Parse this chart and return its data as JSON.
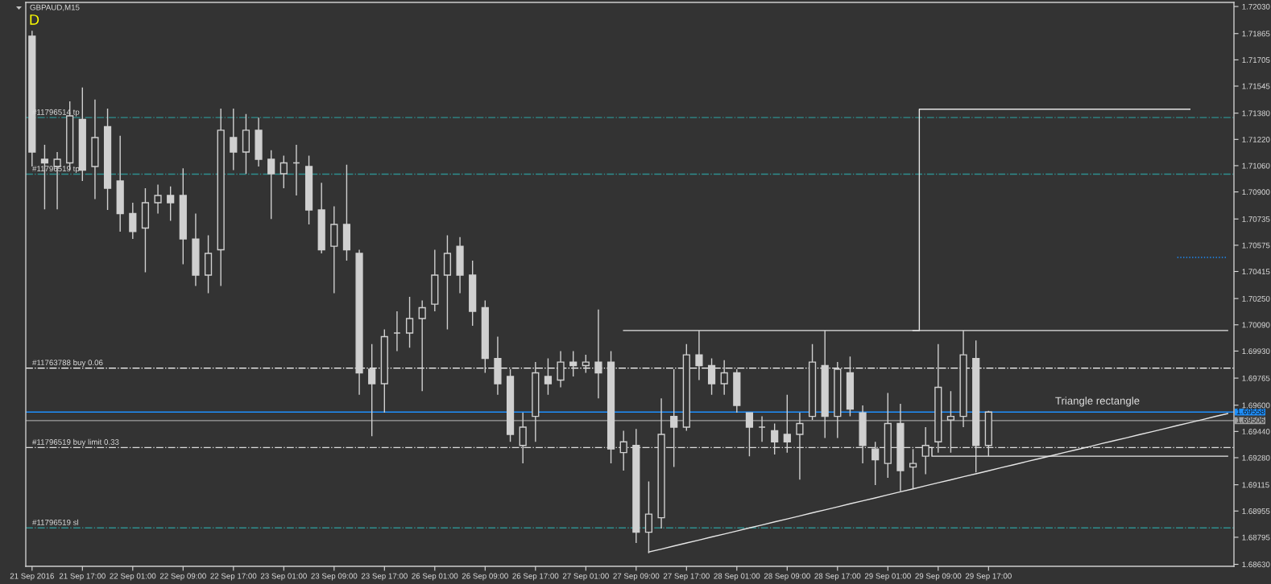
{
  "chart_data": {
    "type": "candlestick",
    "title": "GBPAUD,M15",
    "annotations": [
      "D",
      "Triangle rectangle"
    ],
    "color": "#d0d0d0",
    "categories": [
      "21 Sep 2016",
      null,
      null,
      null,
      "21 Sep 17:00",
      null,
      null,
      null,
      "22 Sep 01:00",
      null,
      null,
      null,
      "22 Sep 09:00",
      null,
      null,
      null,
      "22 Sep 17:00",
      null,
      null,
      null,
      "23 Sep 01:00",
      null,
      null,
      null,
      "23 Sep 09:00",
      null,
      null,
      null,
      "23 Sep 17:00",
      null,
      null,
      null,
      "26 Sep 01:00",
      null,
      null,
      null,
      "26 Sep 09:00",
      null,
      null,
      null,
      "26 Sep 17:00",
      null,
      null,
      null,
      "27 Sep 01:00",
      null,
      null,
      null,
      "27 Sep 09:00",
      null,
      null,
      null,
      "27 Sep 17:00",
      null,
      null,
      null,
      "28 Sep 01:00",
      null,
      null,
      null,
      "28 Sep 09:00",
      null,
      null,
      null,
      "28 Sep 17:00",
      null,
      null,
      null,
      "29 Sep 01:00",
      null,
      null,
      null,
      "29 Sep 09:00",
      null,
      null,
      null,
      "29 Sep 17:00",
      null,
      null,
      null,
      null,
      null,
      null,
      null,
      null,
      null,
      null,
      null,
      null,
      null,
      null,
      null,
      null,
      null,
      null,
      null
    ],
    "ohlc": [
      [
        1.71849,
        1.71882,
        1.71055,
        1.71143
      ],
      [
        1.71099,
        1.71187,
        1.70794,
        1.71077
      ],
      [
        1.71055,
        1.71143,
        1.70794,
        1.71099
      ],
      [
        1.71077,
        1.71452,
        1.71033,
        1.71364
      ],
      [
        1.71342,
        1.71536,
        1.70967,
        1.71033
      ],
      [
        1.71055,
        1.71463,
        1.70856,
        1.71231
      ],
      [
        1.71298,
        1.71408,
        1.7079,
        1.70922
      ],
      [
        1.70967,
        1.71242,
        1.70658,
        1.70768
      ],
      [
        1.70768,
        1.70834,
        1.70613,
        1.70658
      ],
      [
        1.7068,
        1.70922,
        1.7041,
        1.70834
      ],
      [
        1.70834,
        1.70944,
        1.70768,
        1.70878
      ],
      [
        1.70878,
        1.70933,
        1.70724,
        1.70834
      ],
      [
        1.70878,
        1.71044,
        1.70459,
        1.70613
      ],
      [
        1.70613,
        1.70768,
        1.70327,
        1.70393
      ],
      [
        1.70393,
        1.70635,
        1.70282,
        1.70525
      ],
      [
        1.70547,
        1.71408,
        1.70327,
        1.71276
      ],
      [
        1.71231,
        1.71408,
        1.71033,
        1.71143
      ],
      [
        1.71143,
        1.71375,
        1.71011,
        1.71276
      ],
      [
        1.71276,
        1.71353,
        1.71055,
        1.71099
      ],
      [
        1.71099,
        1.71154,
        1.70735,
        1.71011
      ],
      [
        1.71011,
        1.71121,
        1.70922,
        1.71077
      ],
      [
        1.71077,
        1.71187,
        1.70878,
        1.71077
      ],
      [
        1.71055,
        1.71121,
        1.70702,
        1.7079
      ],
      [
        1.7079,
        1.70956,
        1.70525,
        1.70547
      ],
      [
        1.70569,
        1.70812,
        1.70282,
        1.70702
      ],
      [
        1.70702,
        1.71066,
        1.70481,
        1.70547
      ],
      [
        1.70525,
        1.70547,
        1.69664,
        1.69797
      ],
      [
        1.69819,
        1.69973,
        1.69411,
        1.69731
      ],
      [
        1.69731,
        1.70062,
        1.69554,
        1.70018
      ],
      [
        1.7004,
        1.70172,
        1.69929,
        1.7004
      ],
      [
        1.7004,
        1.7026,
        1.69951,
        1.70128
      ],
      [
        1.70128,
        1.70238,
        1.69686,
        1.70194
      ],
      [
        1.70216,
        1.70547,
        1.70172,
        1.70393
      ],
      [
        1.70393,
        1.70635,
        1.70062,
        1.70525
      ],
      [
        1.70569,
        1.70624,
        1.70282,
        1.70393
      ],
      [
        1.70393,
        1.70481,
        1.70084,
        1.70172
      ],
      [
        1.70194,
        1.70238,
        1.69797,
        1.69885
      ],
      [
        1.69885,
        1.70018,
        1.69664,
        1.69731
      ],
      [
        1.69775,
        1.69819,
        1.69377,
        1.69422
      ],
      [
        1.69355,
        1.69554,
        1.69245,
        1.69466
      ],
      [
        1.69532,
        1.69863,
        1.69377,
        1.69797
      ],
      [
        1.69775,
        1.69885,
        1.69664,
        1.69731
      ],
      [
        1.69753,
        1.69929,
        1.69709,
        1.69863
      ],
      [
        1.69863,
        1.69929,
        1.69775,
        1.69841
      ],
      [
        1.69841,
        1.69907,
        1.69797,
        1.69863
      ],
      [
        1.69863,
        1.70183,
        1.69642,
        1.69797
      ],
      [
        1.69863,
        1.69929,
        1.69245,
        1.69333
      ],
      [
        1.69311,
        1.69444,
        1.69201,
        1.69377
      ],
      [
        1.69355,
        1.69455,
        1.6876,
        1.68826
      ],
      [
        1.68826,
        1.69135,
        1.68698,
        1.68936
      ],
      [
        1.68914,
        1.69642,
        1.68848,
        1.69422
      ],
      [
        1.69532,
        1.69819,
        1.69223,
        1.69466
      ],
      [
        1.69466,
        1.69973,
        1.69444,
        1.69907
      ],
      [
        1.69907,
        1.70055,
        1.69753,
        1.69841
      ],
      [
        1.69841,
        1.69885,
        1.69664,
        1.69731
      ],
      [
        1.69731,
        1.69874,
        1.69664,
        1.69797
      ],
      [
        1.69797,
        1.69819,
        1.69554,
        1.69598
      ],
      [
        1.69554,
        1.69554,
        1.69289,
        1.69466
      ],
      [
        1.69466,
        1.69532,
        1.69377,
        1.69466
      ],
      [
        1.69444,
        1.69488,
        1.693,
        1.69377
      ],
      [
        1.69422,
        1.69664,
        1.69311,
        1.69377
      ],
      [
        1.69422,
        1.69554,
        1.69146,
        1.69488
      ],
      [
        1.69532,
        1.69973,
        1.6951,
        1.69863
      ],
      [
        1.69841,
        1.70055,
        1.694,
        1.69532
      ],
      [
        1.69532,
        1.69863,
        1.694,
        1.69819
      ],
      [
        1.69797,
        1.69896,
        1.69532,
        1.69576
      ],
      [
        1.69554,
        1.69598,
        1.69245,
        1.69355
      ],
      [
        1.69333,
        1.69377,
        1.69113,
        1.69267
      ],
      [
        1.69245,
        1.69675,
        1.69157,
        1.69488
      ],
      [
        1.69488,
        1.69609,
        1.69075,
        1.69201
      ],
      [
        1.69223,
        1.69333,
        1.69093,
        1.69245
      ],
      [
        1.69289,
        1.69466,
        1.69179,
        1.69355
      ],
      [
        1.69377,
        1.69973,
        1.69311,
        1.69709
      ],
      [
        1.6951,
        1.69686,
        1.69311,
        1.69532
      ],
      [
        1.69532,
        1.70055,
        1.69466,
        1.69907
      ],
      [
        1.69885,
        1.69995,
        1.6919,
        1.69355
      ],
      [
        1.69355,
        1.69565,
        1.69289,
        1.69558
      ],
      null,
      null,
      null,
      null,
      null,
      null,
      null,
      null,
      null,
      null,
      null,
      null,
      null,
      null,
      null,
      null,
      null,
      null,
      null
    ],
    "series": [
      {
        "type": "line",
        "color": "#e6e6e6",
        "values": [
          null,
          null,
          null,
          null,
          null,
          null,
          null,
          null,
          null,
          null,
          null,
          null,
          null,
          null,
          null,
          null,
          null,
          null,
          null,
          null,
          null,
          null,
          null,
          null,
          null,
          null,
          null,
          null,
          null,
          null,
          null,
          null,
          null,
          null,
          null,
          null,
          null,
          null,
          null,
          null,
          null,
          null,
          null,
          null,
          null,
          null,
          null,
          null,
          null,
          1.68705,
          1.68723,
          1.68742,
          1.6876,
          1.68778,
          1.68797,
          1.68815,
          1.68833,
          1.68852,
          1.6887,
          1.68889,
          1.68907,
          1.68925,
          1.68944,
          1.68962,
          1.6898,
          1.68999,
          1.69017,
          1.69035,
          1.69054,
          1.69072,
          1.6909,
          1.69109,
          1.69127,
          1.69145,
          1.69164,
          1.69182,
          1.692,
          1.69219,
          1.69237,
          1.69256,
          1.69274,
          1.69292,
          1.69311,
          1.69329,
          1.69347,
          1.69366,
          1.69384,
          1.69402,
          1.69421,
          1.69439,
          1.69457,
          1.69476,
          1.69494,
          1.69512,
          1.69531,
          1.69549
        ]
      },
      {
        "type": "line",
        "color": "#e6e6e6",
        "values": [
          null,
          null,
          null,
          null,
          null,
          null,
          null,
          null,
          null,
          null,
          null,
          null,
          null,
          null,
          null,
          null,
          null,
          null,
          null,
          null,
          null,
          null,
          null,
          null,
          null,
          null,
          null,
          null,
          null,
          null,
          null,
          null,
          null,
          null,
          null,
          null,
          null,
          null,
          null,
          null,
          null,
          null,
          null,
          null,
          null,
          null,
          null,
          1.70055,
          1.70055,
          1.70055,
          1.70055,
          1.70055,
          1.70055,
          1.70055,
          1.70055,
          1.70055,
          1.70055,
          1.70055,
          1.70055,
          1.70055,
          1.70055,
          1.70055,
          1.70055,
          1.70055,
          1.70055,
          1.70055,
          1.70055,
          1.70055,
          1.70055,
          1.70055,
          1.70055,
          1.70055,
          1.70055,
          1.70055,
          1.70055,
          1.70055,
          1.70055,
          1.70055,
          1.70055,
          1.70055,
          1.70055,
          1.70055,
          1.70055,
          1.70055,
          1.70055,
          1.70055,
          1.70055,
          1.70055,
          1.70055,
          1.70055,
          1.70055,
          1.70055,
          1.70055,
          1.70055,
          1.70055,
          1.70055
        ]
      },
      {
        "type": "step",
        "color": "#e6e6e6",
        "values": [
          null,
          null,
          null,
          null,
          null,
          null,
          null,
          null,
          null,
          null,
          null,
          null,
          null,
          null,
          null,
          null,
          null,
          null,
          null,
          null,
          null,
          null,
          null,
          null,
          null,
          null,
          null,
          null,
          null,
          null,
          null,
          null,
          null,
          null,
          null,
          null,
          null,
          null,
          null,
          null,
          null,
          null,
          null,
          null,
          null,
          null,
          null,
          null,
          null,
          null,
          null,
          null,
          null,
          null,
          null,
          null,
          null,
          null,
          null,
          null,
          null,
          null,
          null,
          null,
          null,
          null,
          null,
          null,
          null,
          null,
          1.70055,
          1.71404,
          1.71404,
          1.71404,
          1.71404,
          1.71404,
          1.71404,
          1.71404,
          1.71404,
          1.71404,
          1.71404,
          1.71404,
          1.71404,
          1.71404,
          1.71404,
          1.71404,
          1.71404,
          1.71404,
          1.71404,
          1.71404,
          1.71404,
          1.71404,
          1.71404,
          null,
          null,
          null
        ]
      },
      {
        "type": "step",
        "color": "#e6e6e6",
        "values": [
          null,
          null,
          null,
          null,
          null,
          null,
          null,
          null,
          null,
          null,
          null,
          null,
          null,
          null,
          null,
          null,
          null,
          null,
          null,
          null,
          null,
          null,
          null,
          null,
          null,
          null,
          null,
          null,
          null,
          null,
          null,
          null,
          null,
          null,
          null,
          null,
          null,
          null,
          null,
          null,
          null,
          null,
          null,
          null,
          null,
          null,
          null,
          null,
          null,
          null,
          null,
          null,
          null,
          null,
          null,
          null,
          null,
          null,
          null,
          null,
          null,
          null,
          null,
          null,
          null,
          null,
          null,
          null,
          null,
          null,
          null,
          1.69342,
          1.69289,
          1.69289,
          1.69289,
          1.69289,
          1.69289,
          1.69289,
          1.69289,
          1.69289,
          1.69289,
          1.69289,
          1.69289,
          1.69289,
          1.69289,
          1.69289,
          1.69289,
          1.69289,
          1.69289,
          1.69289,
          1.69289,
          1.69289,
          1.69289,
          1.69289,
          1.69289,
          1.69289
        ]
      },
      {
        "type": "line",
        "color": "#1e90ff",
        "line_style": "dotted",
        "values": [
          null,
          null,
          null,
          null,
          null,
          null,
          null,
          null,
          null,
          null,
          null,
          null,
          null,
          null,
          null,
          null,
          null,
          null,
          null,
          null,
          null,
          null,
          null,
          null,
          null,
          null,
          null,
          null,
          null,
          null,
          null,
          null,
          null,
          null,
          null,
          null,
          null,
          null,
          null,
          null,
          null,
          null,
          null,
          null,
          null,
          null,
          null,
          null,
          null,
          null,
          null,
          null,
          null,
          null,
          null,
          null,
          null,
          null,
          null,
          null,
          null,
          null,
          null,
          null,
          null,
          null,
          null,
          null,
          null,
          null,
          null,
          null,
          null,
          null,
          null,
          null,
          null,
          null,
          null,
          null,
          null,
          null,
          null,
          null,
          null,
          null,
          null,
          null,
          null,
          null,
          null,
          1.70501,
          1.70501,
          1.70501,
          1.70501,
          1.70501
        ]
      }
    ],
    "ylim": [
      1.68618,
      1.72055
    ],
    "yticks": [
      {
        "value": 1.7203,
        "label": "1.72030"
      },
      {
        "value": 1.71865,
        "label": "1.71865"
      },
      {
        "value": 1.71705,
        "label": "1.71705"
      },
      {
        "value": 1.71545,
        "label": "1.71545"
      },
      {
        "value": 1.7138,
        "label": "1.71380"
      },
      {
        "value": 1.7122,
        "label": "1.71220"
      },
      {
        "value": 1.7106,
        "label": "1.71060"
      },
      {
        "value": 1.709,
        "label": "1.70900"
      },
      {
        "value": 1.70735,
        "label": "1.70735"
      },
      {
        "value": 1.70575,
        "label": "1.70575"
      },
      {
        "value": 1.70415,
        "label": "1.70415"
      },
      {
        "value": 1.7025,
        "label": "1.70250"
      },
      {
        "value": 1.7009,
        "label": "1.70090"
      },
      {
        "value": 1.6993,
        "label": "1.69930"
      },
      {
        "value": 1.69765,
        "label": "1.69765"
      },
      {
        "value": 1.696,
        "label": "1.69600"
      },
      {
        "value": 1.6944,
        "label": "1.69440"
      },
      {
        "value": 1.6928,
        "label": "1.69280"
      },
      {
        "value": 1.69115,
        "label": "1.69115"
      },
      {
        "value": 1.68955,
        "label": "1.68955"
      },
      {
        "value": 1.68795,
        "label": "1.68795"
      },
      {
        "value": 1.6863,
        "label": "1.68630"
      }
    ],
    "ref_lines": [
      {
        "axis": "y",
        "value": 1.71353,
        "label": "#11796514 tp",
        "color": "#2f8f8f",
        "line_style": "dashdot"
      },
      {
        "axis": "y",
        "value": 1.71008,
        "label": "#11796519 tp",
        "color": "#2f8f8f",
        "line_style": "dashdot"
      },
      {
        "axis": "y",
        "value": 1.69826,
        "label": "#11763788 buy 0.06",
        "color": "#ffffff",
        "line_style": "dashdot"
      },
      {
        "axis": "y",
        "value": 1.69558,
        "label": "1.69558",
        "color": "#1e90ff",
        "line_style": "solid"
      },
      {
        "axis": "y",
        "value": 1.69506,
        "label": "1.69506",
        "color": "#a0a0a0",
        "line_style": "solid"
      },
      {
        "axis": "y",
        "value": 1.69342,
        "label": "#11796519 buy limit 0.33",
        "color": "#dcdcdc",
        "line_style": "dashdot"
      },
      {
        "axis": "y",
        "value": 1.68852,
        "label": "#11796519 sl",
        "color": "#2f8f8f",
        "line_style": "dashdot"
      }
    ]
  }
}
